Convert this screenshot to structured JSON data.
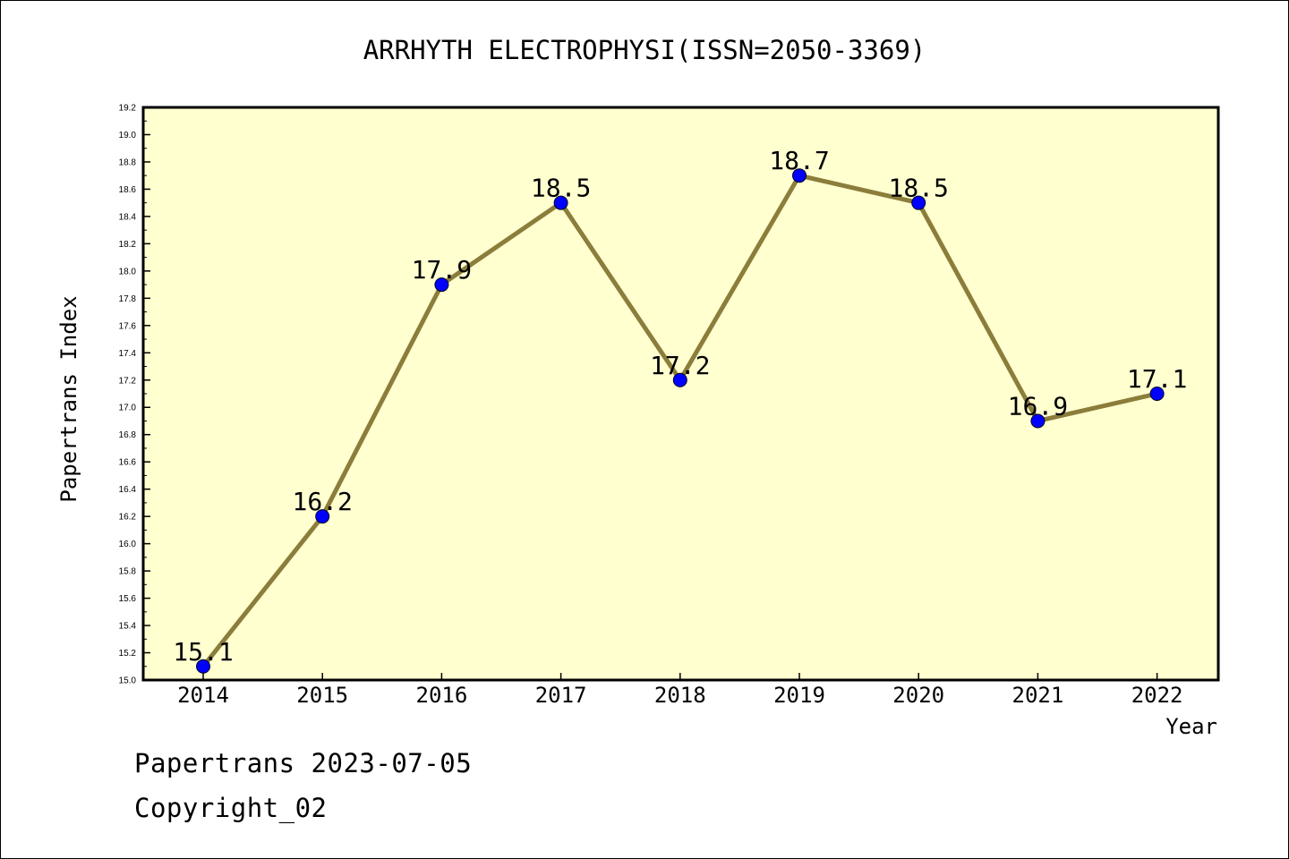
{
  "chart_data": {
    "type": "line",
    "title": "ARRHYTH ELECTROPHYSI(ISSN=2050-3369)",
    "xlabel": "Year",
    "ylabel": "Papertrans Index",
    "categories": [
      "2014",
      "2015",
      "2016",
      "2017",
      "2018",
      "2019",
      "2020",
      "2021",
      "2022"
    ],
    "series": [
      {
        "values": [
          15.1,
          16.2,
          17.9,
          18.5,
          17.2,
          18.7,
          18.5,
          16.9,
          17.1
        ]
      }
    ],
    "data_labels": [
      "15.1",
      "16.2",
      "17.9",
      "18.5",
      "17.2",
      "18.7",
      "18.5",
      "16.9",
      "17.1"
    ],
    "ylim": [
      15.0,
      19.2
    ],
    "y_ticks": [
      "15.0",
      "15.2",
      "15.4",
      "15.6",
      "15.8",
      "16.0",
      "16.2",
      "16.4",
      "16.6",
      "16.8",
      "17.0",
      "17.2",
      "17.4",
      "17.6",
      "17.8",
      "18.0",
      "18.2",
      "18.4",
      "18.6",
      "18.8",
      "19.0",
      "19.2"
    ],
    "grid": false,
    "colors": {
      "plot_background": "#ffffd0",
      "line": "#8b7d3a",
      "marker": "#0000ff"
    }
  },
  "footer": {
    "date": "Papertrans 2023-07-05",
    "copyright": "Copyright_02"
  }
}
